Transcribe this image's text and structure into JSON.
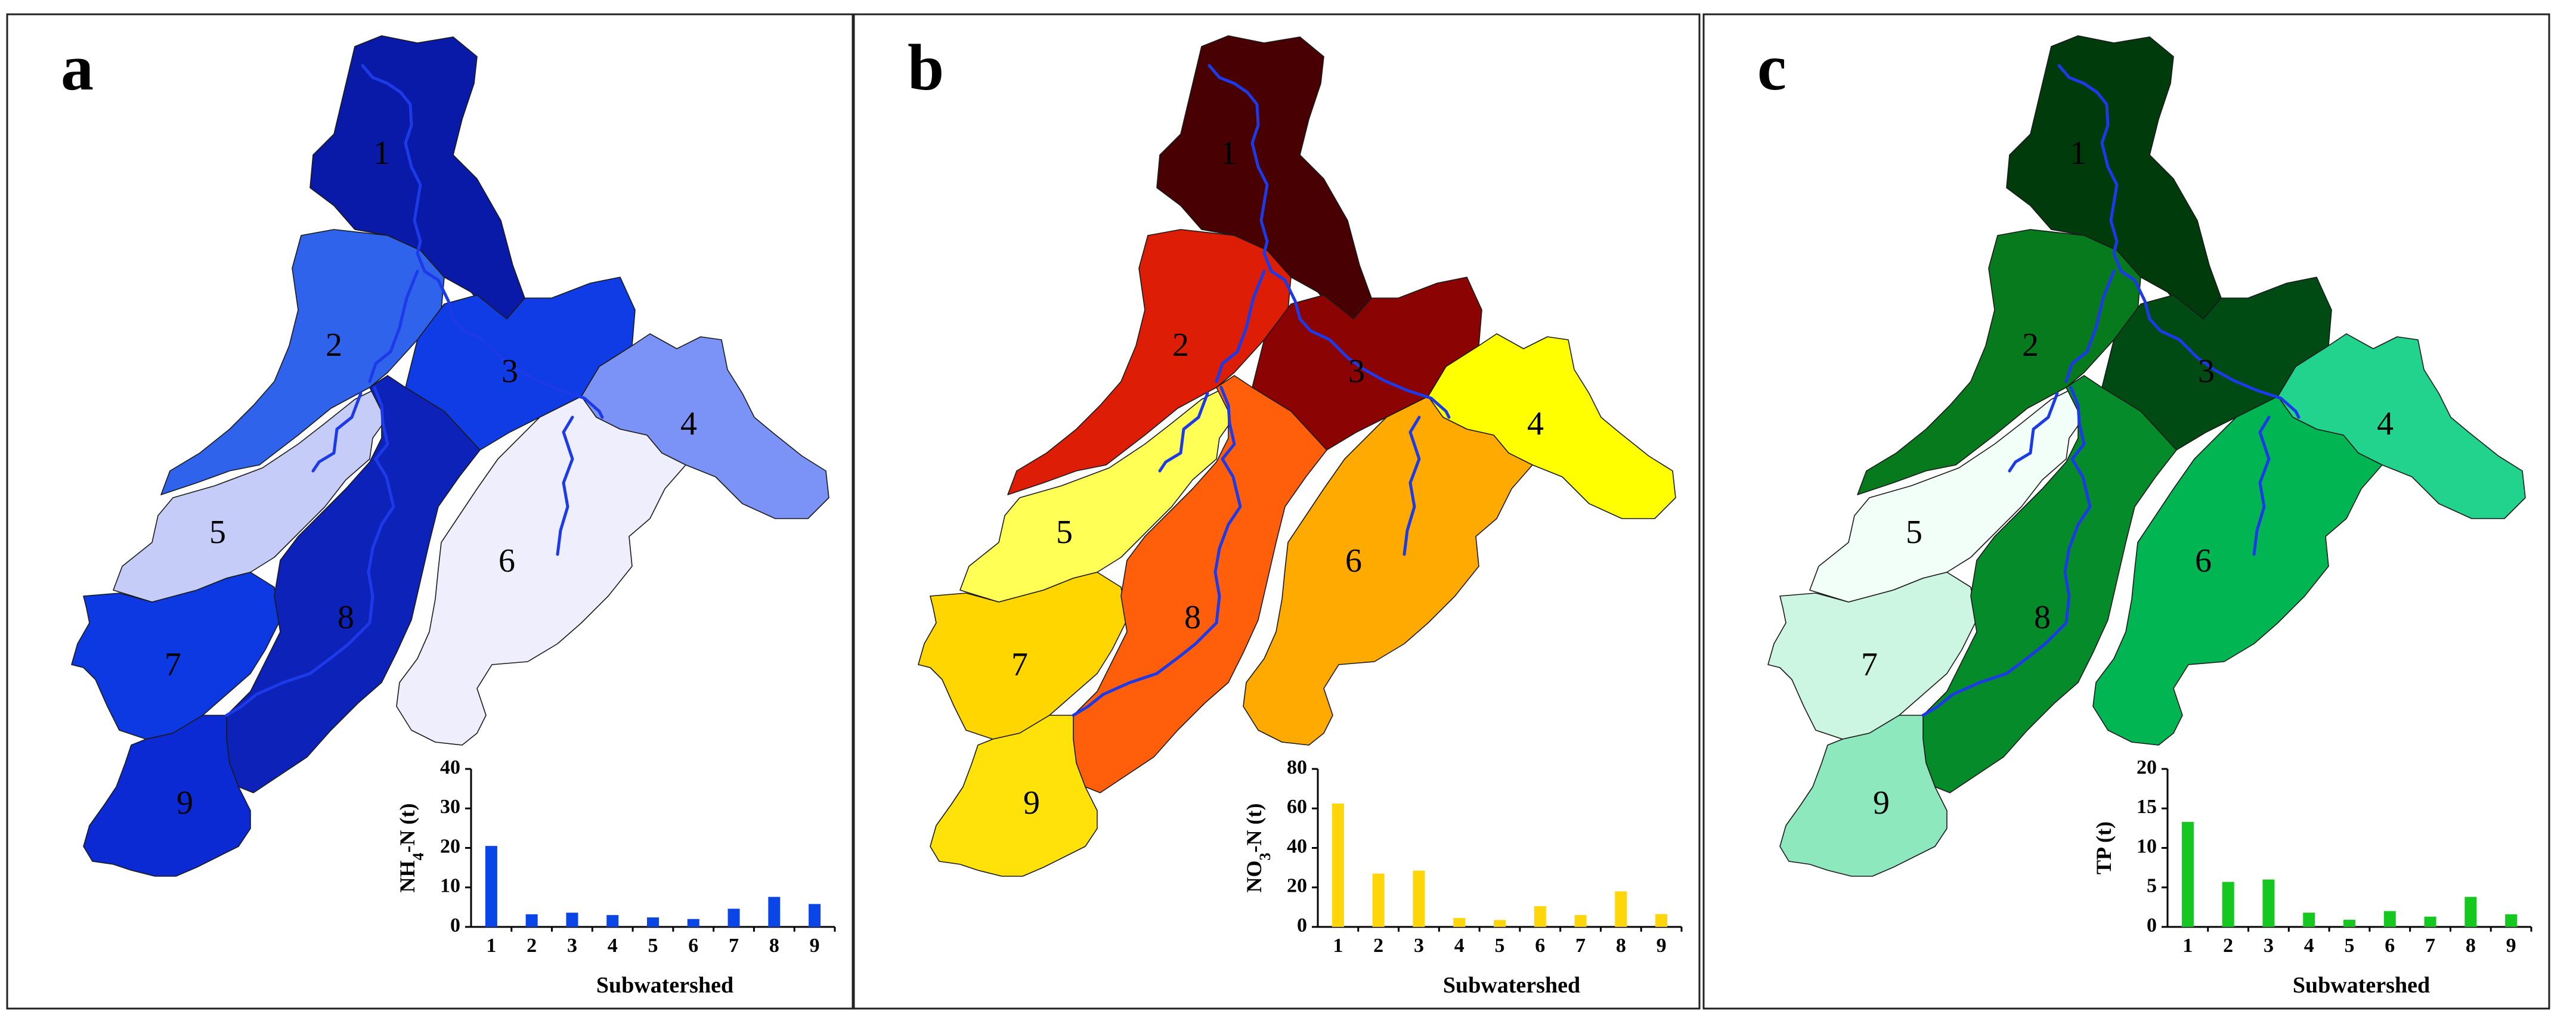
{
  "subwatershed_labels": [
    "1",
    "2",
    "3",
    "4",
    "5",
    "6",
    "7",
    "8",
    "9"
  ],
  "panels": [
    {
      "letter": "a",
      "region_colors": [
        "#0a1aa8",
        "#2f63ec",
        "#0f3ce4",
        "#7b93f7",
        "#c4ccf7",
        "#eeeefd",
        "#0c39e2",
        "#0d22b8",
        "#0b2ad3"
      ],
      "bar_color": "#0a45e8",
      "river_color": "#1c3ae8",
      "chart_data": {
        "type": "bar",
        "categories": [
          "1",
          "2",
          "3",
          "4",
          "5",
          "6",
          "7",
          "8",
          "9"
        ],
        "values": [
          20.5,
          3.2,
          3.6,
          3.0,
          2.4,
          2.0,
          4.6,
          7.6,
          5.8
        ],
        "ylim": [
          0,
          40
        ],
        "yticks": [
          "0",
          "10",
          "20",
          "30",
          "40"
        ],
        "ylabel_main": "NH",
        "ylabel_sub": "4",
        "ylabel_rest": "-N (t)",
        "xlabel": "Subwatershed"
      }
    },
    {
      "letter": "b",
      "region_colors": [
        "#480003",
        "#dd1d05",
        "#8b0303",
        "#ffff00",
        "#ffff55",
        "#ffaa00",
        "#ffd600",
        "#ff5f0a",
        "#ffe20a"
      ],
      "bar_color": "#ffd60a",
      "river_color": "#1c3ae8",
      "chart_data": {
        "type": "bar",
        "categories": [
          "1",
          "2",
          "3",
          "4",
          "5",
          "6",
          "7",
          "8",
          "9"
        ],
        "values": [
          62.5,
          27.0,
          28.5,
          4.5,
          3.5,
          10.5,
          6.0,
          18.0,
          6.5
        ],
        "ylim": [
          0,
          80
        ],
        "yticks": [
          "0",
          "20",
          "40",
          "60",
          "80"
        ],
        "ylabel_main": "NO",
        "ylabel_sub": "3",
        "ylabel_rest": "-N (t)",
        "xlabel": "Subwatershed"
      }
    },
    {
      "letter": "c",
      "region_colors": [
        "#003b0b",
        "#067a1c",
        "#004a13",
        "#21d38c",
        "#f2fff9",
        "#02b553",
        "#ccf6e2",
        "#068b2a",
        "#8de8bd"
      ],
      "bar_color": "#14c81f",
      "river_color": "#1c3ae8",
      "chart_data": {
        "type": "bar",
        "categories": [
          "1",
          "2",
          "3",
          "4",
          "5",
          "6",
          "7",
          "8",
          "9"
        ],
        "values": [
          13.3,
          5.7,
          6.0,
          1.8,
          0.9,
          2.0,
          1.3,
          3.8,
          1.6
        ],
        "ylim": [
          0,
          20
        ],
        "yticks": [
          "0",
          "5",
          "10",
          "15",
          "20"
        ],
        "ylabel_main": "TP (t)",
        "ylabel_sub": "",
        "ylabel_rest": "",
        "xlabel": "Subwatershed"
      }
    }
  ]
}
